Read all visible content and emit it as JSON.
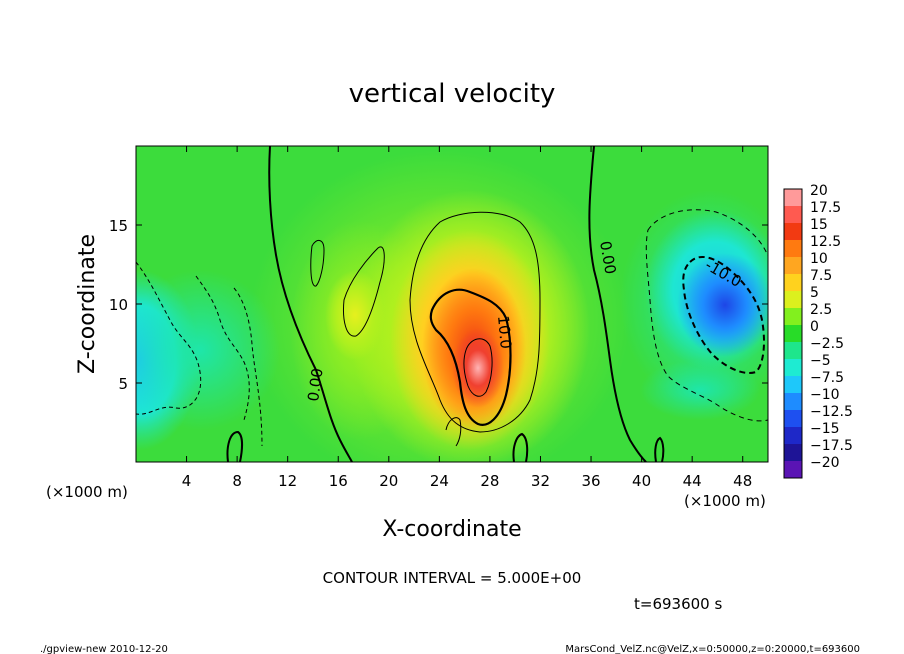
{
  "chart_data": {
    "type": "heatmap",
    "title": "vertical velocity",
    "xlabel": "X-coordinate",
    "ylabel": "Z-coordinate",
    "x_unit": "(×1000 m)",
    "x_unit_right": "(×1000 m)",
    "xlim": [
      0,
      50
    ],
    "ylim": [
      0,
      20
    ],
    "x_ticks": [
      "4",
      "8",
      "12",
      "16",
      "20",
      "24",
      "28",
      "32",
      "36",
      "40",
      "44",
      "48"
    ],
    "y_ticks": [
      "5",
      "10",
      "15"
    ],
    "contour_interval_text": "CONTOUR INTERVAL = 5.000E+00",
    "time_text": "t=693600 s",
    "contour_labels": [
      "0.00",
      "10.0",
      "-10.0",
      "0.00"
    ],
    "colorbar": {
      "labels": [
        "20",
        "17.5",
        "15",
        "12.5",
        "10",
        "7.5",
        "5",
        "2.5",
        "0",
        "−2.5",
        "−5",
        "−7.5",
        "−10",
        "−12.5",
        "−15",
        "−17.5",
        "−20"
      ],
      "colors": [
        "#ff9a9a",
        "#ff5a50",
        "#f23a12",
        "#ff7a10",
        "#ffa620",
        "#ffd21e",
        "#dcf01e",
        "#82f01e",
        "#28dc28",
        "#1ee68c",
        "#1eebd2",
        "#1ec8fa",
        "#1e8cff",
        "#1e50f0",
        "#1e28c8",
        "#1e1496",
        "#5a14b4"
      ]
    },
    "features": [
      {
        "name": "updraft core",
        "x": 27,
        "z": 6.5,
        "w": 20
      },
      {
        "name": "downdraft east",
        "x": 46,
        "z": 10,
        "w": -13
      },
      {
        "name": "downdraft west",
        "x": 1,
        "z": 7,
        "w": -6
      }
    ]
  },
  "footer": {
    "left": "./gpview-new   2010-12-20",
    "right": "MarsCond_VelZ.nc@VelZ,x=0:50000,z=0:20000,t=693600"
  }
}
